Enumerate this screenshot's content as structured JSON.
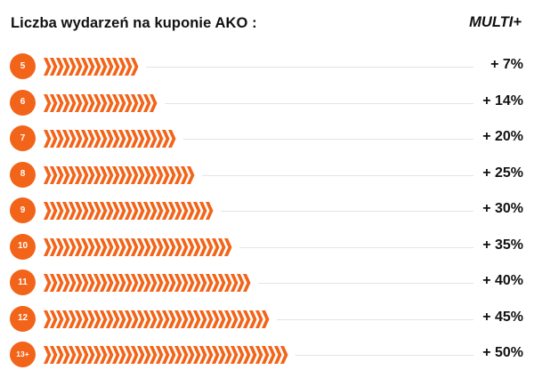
{
  "header": {
    "title": "Liczba wydarzeń na kuponie AKO :",
    "column_label": "MULTI+"
  },
  "colors": {
    "accent": "#f26419",
    "line": "#e4e4e4",
    "text": "#111111"
  },
  "rows": [
    {
      "events": "5",
      "bonus": "+ 7%",
      "bonus_value": 7
    },
    {
      "events": "6",
      "bonus": "+ 14%",
      "bonus_value": 14
    },
    {
      "events": "7",
      "bonus": "+ 20%",
      "bonus_value": 20
    },
    {
      "events": "8",
      "bonus": "+ 25%",
      "bonus_value": 25
    },
    {
      "events": "9",
      "bonus": "+ 30%",
      "bonus_value": 30
    },
    {
      "events": "10",
      "bonus": "+ 35%",
      "bonus_value": 35
    },
    {
      "events": "11",
      "bonus": "+ 40%",
      "bonus_value": 40
    },
    {
      "events": "12",
      "bonus": "+ 45%",
      "bonus_value": 45
    },
    {
      "events": "13+",
      "bonus": "+ 50%",
      "bonus_value": 50
    }
  ]
}
